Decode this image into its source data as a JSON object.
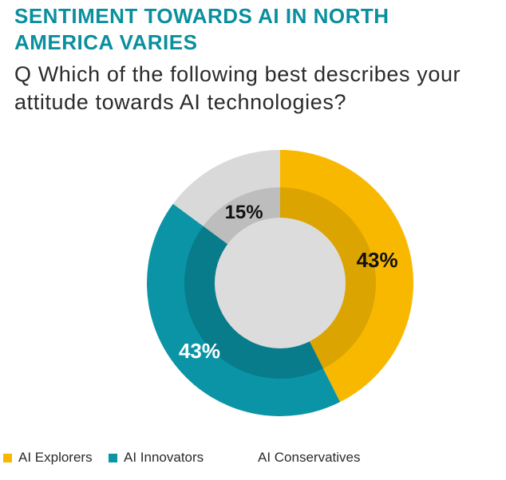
{
  "title": "SENTIMENT TOWARDS AI IN NORTH AMERICA VARIES",
  "subtitle": "Q Which of the following best describes your attitude towards AI technologies?",
  "colors": {
    "explorers_outer": "#f9b800",
    "explorers_inner": "#dba400",
    "innovators_outer": "#0a94a6",
    "innovators_inner": "#087c8a",
    "conservatives_outer": "#d9d9d9",
    "conservatives_inner": "#bdbdbd",
    "center": "#dcdcdc"
  },
  "chart_data": {
    "type": "pie",
    "title": "SENTIMENT TOWARDS AI IN NORTH AMERICA VARIES",
    "categories": [
      "AI Explorers",
      "AI Innovators",
      "AI Conservatives"
    ],
    "values": [
      43,
      43,
      15
    ],
    "labels": [
      "43%",
      "43%",
      "15%"
    ],
    "legend_position": "bottom"
  }
}
